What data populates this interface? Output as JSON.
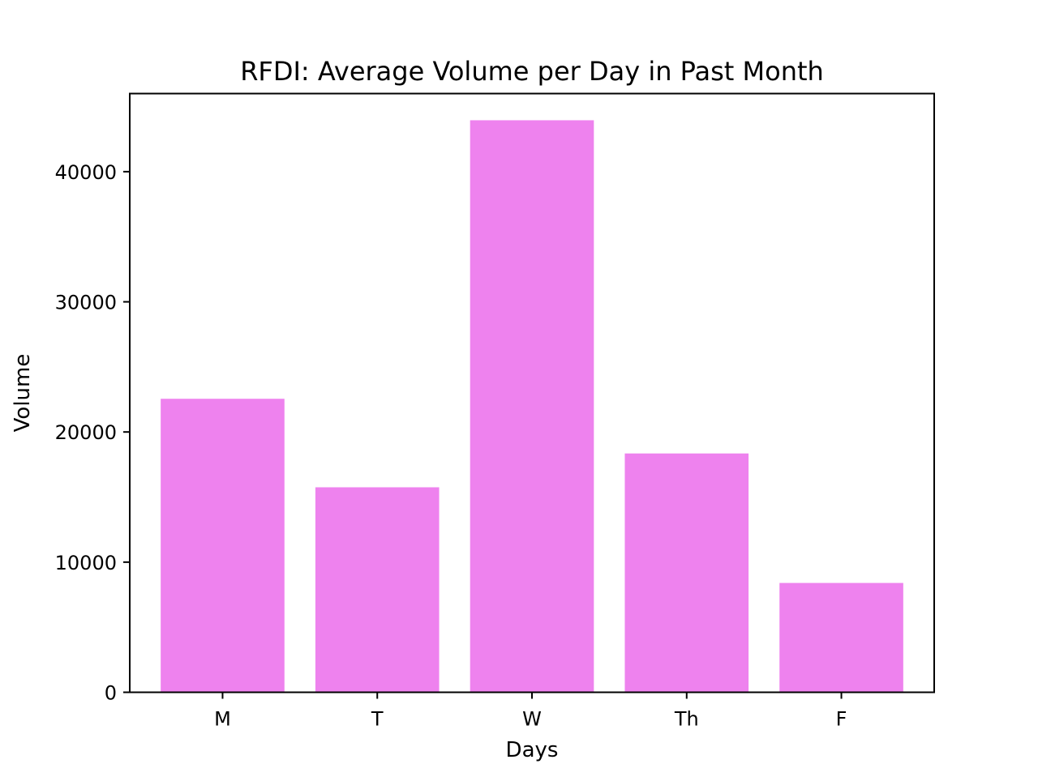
{
  "chart_data": {
    "type": "bar",
    "title": "RFDI: Average Volume per Day in Past Month",
    "xlabel": "Days",
    "ylabel": "Volume",
    "categories": [
      "M",
      "T",
      "W",
      "Th",
      "F"
    ],
    "values": [
      22550,
      15750,
      43950,
      18350,
      8400
    ],
    "ylim": [
      0,
      46000
    ],
    "yticks": [
      0,
      10000,
      20000,
      30000,
      40000
    ],
    "bar_color": "#ee82ee",
    "grid": false,
    "legend": false
  }
}
